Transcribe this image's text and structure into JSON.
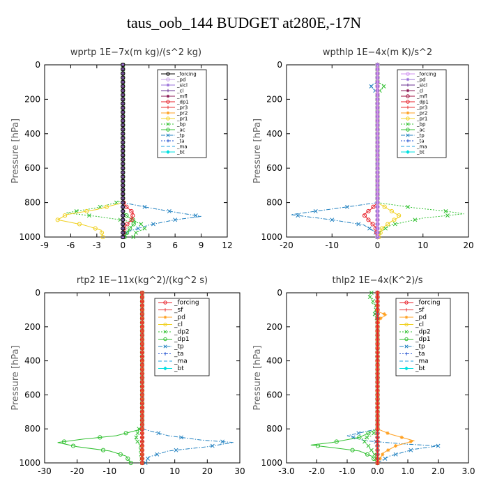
{
  "title": "taus_oob_144  BUDGET at280E,-17N",
  "chart_data": [
    {
      "type": "line",
      "title": "wprtp  1E−7x(m kg)/(s^2 kg)",
      "ylabel": "Pressure [hPa]",
      "xlim": [
        -9,
        12
      ],
      "ylim": [
        1000,
        0
      ],
      "xticks": [
        "-9",
        "-6",
        "-3",
        "0",
        "3",
        "6",
        "9",
        "12"
      ],
      "xtick_values": [
        -9,
        -6,
        -3,
        0,
        3,
        6,
        9,
        12
      ],
      "yticks": [
        "0",
        "200",
        "400",
        "600",
        "800",
        "1000"
      ],
      "ytick_values": [
        0,
        200,
        400,
        600,
        800,
        1000
      ],
      "legend_position": "top-right",
      "series": [
        {
          "name": "_forcing",
          "color": "#000000",
          "marker": "o",
          "dash": "none",
          "x": [
            0,
            0
          ],
          "y": [
            0,
            1000
          ]
        },
        {
          "name": "_pd",
          "color": "#c8a0e8",
          "marker": "o",
          "dash": "none",
          "x": [
            0,
            0
          ],
          "y": [
            0,
            1000
          ]
        },
        {
          "name": "_sicl",
          "color": "#9a70d8",
          "marker": "*",
          "dash": "none",
          "x": [
            0,
            0
          ],
          "y": [
            0,
            1000
          ]
        },
        {
          "name": "_cl",
          "color": "#6a3090",
          "marker": "+",
          "dash": "none",
          "x": [
            0,
            0
          ],
          "y": [
            0,
            1000
          ]
        },
        {
          "name": "_mfl",
          "color": "#8b1a55",
          "marker": "*",
          "dash": "none",
          "x": [
            0,
            0
          ],
          "y": [
            0,
            1000
          ]
        },
        {
          "name": "_dp1",
          "color": "#e8202a",
          "marker": "o",
          "dash": "none",
          "x": [
            0,
            0,
            0.3,
            1.2,
            1.0,
            0.2,
            0
          ],
          "y": [
            0,
            790,
            820,
            860,
            900,
            940,
            1000
          ]
        },
        {
          "name": "_pr3",
          "color": "#e83030",
          "marker": "+",
          "dash": "none",
          "x": [
            0,
            0
          ],
          "y": [
            0,
            1000
          ]
        },
        {
          "name": "_pr2",
          "color": "#ffa020",
          "marker": "*",
          "dash": "none",
          "x": [
            0,
            0
          ],
          "y": [
            0,
            1000
          ]
        },
        {
          "name": "_pr1",
          "color": "#f0d020",
          "marker": "o",
          "dash": "none",
          "x": [
            0,
            0,
            -3,
            -6.5,
            -7.5,
            -4.5,
            -2.5,
            -2.3
          ],
          "y": [
            0,
            800,
            840,
            870,
            900,
            930,
            960,
            1000
          ]
        },
        {
          "name": "_bp",
          "color": "#30c030",
          "marker": "x",
          "dash": "dot",
          "x": [
            0,
            0,
            -3,
            -6.5,
            -3,
            -0.3,
            2,
            2.5,
            1.5,
            1.2
          ],
          "y": [
            0,
            790,
            830,
            860,
            880,
            900,
            920,
            950,
            975,
            1000
          ]
        },
        {
          "name": "_ac",
          "color": "#30c030",
          "marker": "o",
          "dash": "none",
          "x": [
            0,
            0,
            0.5,
            1.5,
            0.8,
            0.4,
            0.2
          ],
          "y": [
            0,
            850,
            880,
            910,
            950,
            980,
            1000
          ]
        },
        {
          "name": "_tp",
          "color": "#2080c0",
          "marker": "x",
          "dash": "dashdot",
          "x": [
            0,
            0,
            3,
            6.5,
            9,
            6,
            3,
            0.5,
            0
          ],
          "y": [
            0,
            800,
            830,
            860,
            880,
            900,
            930,
            970,
            1000
          ]
        },
        {
          "name": "_ta",
          "color": "#2050d0",
          "marker": "+",
          "dash": "dot",
          "x": [
            0,
            0
          ],
          "y": [
            0,
            1000
          ]
        },
        {
          "name": "_ma",
          "color": "#20a0e0",
          "marker": "none",
          "dash": "dash",
          "x": [
            0,
            0
          ],
          "y": [
            0,
            1000
          ]
        },
        {
          "name": "_bt",
          "color": "#00e0e0",
          "marker": "D",
          "dash": "none",
          "x": [
            0,
            0
          ],
          "y": [
            0,
            1000
          ]
        }
      ]
    },
    {
      "type": "line",
      "title": "wpthlp  1E−4x(m K)/s^2",
      "ylabel": "Pressure [hPa]",
      "xlim": [
        -20,
        20
      ],
      "ylim": [
        1000,
        0
      ],
      "xticks": [
        "-20",
        "-10",
        "0",
        "10",
        "20"
      ],
      "xtick_values": [
        -20,
        -10,
        0,
        10,
        20
      ],
      "yticks": [
        "0",
        "200",
        "400",
        "600",
        "800",
        "1000"
      ],
      "ytick_values": [
        0,
        200,
        400,
        600,
        800,
        1000
      ],
      "legend_position": "top-right",
      "series": [
        {
          "name": "_forcing",
          "color": "#d090f0",
          "marker": "o",
          "dash": "none",
          "x": [
            0,
            0
          ],
          "y": [
            0,
            1000
          ]
        },
        {
          "name": "_pd",
          "color": "#9a70d8",
          "marker": "*",
          "dash": "none",
          "x": [
            0,
            0
          ],
          "y": [
            0,
            1000
          ]
        },
        {
          "name": "_sicl",
          "color": "#6a3090",
          "marker": "+",
          "dash": "none",
          "x": [
            0,
            0
          ],
          "y": [
            0,
            1000
          ]
        },
        {
          "name": "_cl",
          "color": "#8b1a55",
          "marker": "*",
          "dash": "none",
          "x": [
            0,
            0
          ],
          "y": [
            0,
            1000
          ]
        },
        {
          "name": "_mfl",
          "color": "#a01040",
          "marker": "o",
          "dash": "none",
          "x": [
            0,
            0
          ],
          "y": [
            0,
            1000
          ]
        },
        {
          "name": "_dp1",
          "color": "#e8202a",
          "marker": "o",
          "dash": "none",
          "x": [
            0,
            0,
            -1.5,
            -3,
            -2,
            -0.5,
            0
          ],
          "y": [
            0,
            800,
            840,
            870,
            900,
            940,
            1000
          ]
        },
        {
          "name": "_pr3",
          "color": "#e83030",
          "marker": "+",
          "dash": "none",
          "x": [
            0,
            0
          ],
          "y": [
            0,
            1000
          ]
        },
        {
          "name": "_pr2",
          "color": "#ffa020",
          "marker": "*",
          "dash": "none",
          "x": [
            0,
            0
          ],
          "y": [
            0,
            1000
          ]
        },
        {
          "name": "_pr1",
          "color": "#f0d020",
          "marker": "o",
          "dash": "none",
          "x": [
            0,
            0,
            2.5,
            5,
            3,
            1,
            0.3
          ],
          "y": [
            0,
            800,
            840,
            880,
            910,
            950,
            1000
          ]
        },
        {
          "name": "_bp",
          "color": "#30c030",
          "marker": "x",
          "dash": "dot",
          "x": [
            0,
            0,
            1.5,
            1,
            0,
            0,
            8,
            15,
            19,
            10,
            3,
            0.5,
            0
          ],
          "y": [
            0,
            100,
            120,
            140,
            160,
            800,
            830,
            850,
            865,
            890,
            930,
            970,
            1000
          ]
        },
        {
          "name": "_ac",
          "color": "#30c030",
          "marker": "o",
          "dash": "none",
          "x": [
            0,
            0
          ],
          "y": [
            0,
            1000
          ]
        },
        {
          "name": "_tp",
          "color": "#2080c0",
          "marker": "x",
          "dash": "dashdot",
          "x": [
            0,
            0,
            -1.5,
            -1,
            0,
            0,
            -8,
            -15,
            -19,
            -10,
            -3,
            -0.5,
            0
          ],
          "y": [
            0,
            100,
            120,
            140,
            160,
            800,
            830,
            855,
            870,
            900,
            930,
            970,
            1000
          ]
        },
        {
          "name": "_ta",
          "color": "#2050d0",
          "marker": "+",
          "dash": "dot",
          "x": [
            0,
            0
          ],
          "y": [
            0,
            1000
          ]
        },
        {
          "name": "_ma",
          "color": "#20a0e0",
          "marker": "none",
          "dash": "dash",
          "x": [
            0,
            0
          ],
          "y": [
            0,
            1000
          ]
        },
        {
          "name": "_bt",
          "color": "#00e0e0",
          "marker": "D",
          "dash": "none",
          "x": [
            0,
            0
          ],
          "y": [
            0,
            1000
          ]
        }
      ]
    },
    {
      "type": "line",
      "title": "rtp2  1E−11x(kg^2)/(kg^2 s)",
      "ylabel": "Pressure [hPa]",
      "xlim": [
        -30,
        30
      ],
      "ylim": [
        1000,
        0
      ],
      "xticks": [
        "-30",
        "-20",
        "-10",
        "0",
        "10",
        "20",
        "30"
      ],
      "xtick_values": [
        -30,
        -20,
        -10,
        0,
        10,
        20,
        30
      ],
      "yticks": [
        "0",
        "200",
        "400",
        "600",
        "800",
        "1000"
      ],
      "ytick_values": [
        0,
        200,
        400,
        600,
        800,
        1000
      ],
      "legend_position": "top-right",
      "series": [
        {
          "name": "_forcing",
          "color": "#e8202a",
          "marker": "o",
          "dash": "none",
          "x": [
            0,
            0
          ],
          "y": [
            0,
            1000
          ]
        },
        {
          "name": "_sf",
          "color": "#e83030",
          "marker": "+",
          "dash": "none",
          "x": [
            0,
            0
          ],
          "y": [
            0,
            1000
          ]
        },
        {
          "name": "_pd",
          "color": "#ffa020",
          "marker": "*",
          "dash": "none",
          "x": [
            0,
            0
          ],
          "y": [
            0,
            1000
          ]
        },
        {
          "name": "_cl",
          "color": "#f0d020",
          "marker": "o",
          "dash": "none",
          "x": [
            0,
            0
          ],
          "y": [
            0,
            1000
          ]
        },
        {
          "name": "_dp2",
          "color": "#30c030",
          "marker": "x",
          "dash": "dot",
          "x": [
            0,
            0,
            -1,
            -2,
            -0.5,
            -0.3,
            0
          ],
          "y": [
            0,
            790,
            800,
            860,
            900,
            960,
            1000
          ]
        },
        {
          "name": "_dp1",
          "color": "#30c030",
          "marker": "o",
          "dash": "none",
          "x": [
            0,
            0,
            -8,
            -18,
            -26,
            -20,
            -10,
            -5,
            -3.5
          ],
          "y": [
            0,
            800,
            840,
            860,
            880,
            905,
            930,
            960,
            1000
          ]
        },
        {
          "name": "_tp",
          "color": "#2080c0",
          "marker": "x",
          "dash": "dashdot",
          "x": [
            0,
            0,
            8,
            18,
            28,
            20,
            8,
            2,
            1
          ],
          "y": [
            0,
            800,
            840,
            865,
            880,
            905,
            930,
            965,
            1000
          ]
        },
        {
          "name": "_ta",
          "color": "#2050d0",
          "marker": "+",
          "dash": "dot",
          "x": [
            0,
            0
          ],
          "y": [
            0,
            1000
          ]
        },
        {
          "name": "_ma",
          "color": "#20a0e0",
          "marker": "none",
          "dash": "dash",
          "x": [
            0,
            0
          ],
          "y": [
            0,
            1000
          ]
        },
        {
          "name": "_bt",
          "color": "#00e0e0",
          "marker": "D",
          "dash": "none",
          "x": [
            0,
            0
          ],
          "y": [
            0,
            1000
          ]
        }
      ]
    },
    {
      "type": "line",
      "title": "thlp2  1E−4x(K^2)/s",
      "ylabel": "Pressure [hPa]",
      "xlim": [
        -3,
        3
      ],
      "ylim": [
        1000,
        0
      ],
      "xticks": [
        "-3.0",
        "-2.0",
        "-1.0",
        "0.0",
        "1.0",
        "2.0",
        "3.0"
      ],
      "xtick_values": [
        -3,
        -2,
        -1,
        0,
        1,
        2,
        3
      ],
      "yticks": [
        "0",
        "200",
        "400",
        "600",
        "800",
        "1000"
      ],
      "ytick_values": [
        0,
        200,
        400,
        600,
        800,
        1000
      ],
      "legend_position": "top-right",
      "series": [
        {
          "name": "_forcing",
          "color": "#e8202a",
          "marker": "o",
          "dash": "none",
          "x": [
            0,
            0
          ],
          "y": [
            0,
            1000
          ]
        },
        {
          "name": "_sf",
          "color": "#e83030",
          "marker": "+",
          "dash": "none",
          "x": [
            0,
            0
          ],
          "y": [
            0,
            1000
          ]
        },
        {
          "name": "_pd",
          "color": "#ffa020",
          "marker": "*",
          "dash": "none",
          "x": [
            0,
            0,
            0.3,
            0.1,
            0,
            0,
            0.4,
            0.8,
            1.2,
            0.6,
            0.2,
            0
          ],
          "y": [
            0,
            110,
            130,
            150,
            180,
            800,
            830,
            850,
            870,
            900,
            940,
            1000
          ]
        },
        {
          "name": "_cl",
          "color": "#f0d020",
          "marker": "o",
          "dash": "none",
          "x": [
            0,
            0
          ],
          "y": [
            0,
            1000
          ]
        },
        {
          "name": "_dp2",
          "color": "#30c030",
          "marker": "x",
          "dash": "dot",
          "x": [
            -0.2,
            -0.3,
            -0.1,
            -0.2,
            0,
            -0.1,
            0,
            0,
            -0.2,
            -0.5,
            -0.3,
            -0.1,
            0
          ],
          "y": [
            0,
            20,
            40,
            60,
            80,
            120,
            160,
            800,
            840,
            860,
            900,
            950,
            1000
          ]
        },
        {
          "name": "_dp1",
          "color": "#30c030",
          "marker": "o",
          "dash": "none",
          "x": [
            0,
            0,
            -0.6,
            -1.5,
            -2.2,
            -1.5,
            -0.6,
            -0.2,
            0
          ],
          "y": [
            0,
            800,
            850,
            880,
            895,
            910,
            930,
            960,
            1000
          ]
        },
        {
          "name": "_tp",
          "color": "#2080c0",
          "marker": "x",
          "dash": "dashdot",
          "x": [
            0,
            0,
            -0.1,
            0,
            0,
            -0.5,
            -1.0,
            -0.4,
            1.0,
            2.0,
            1.2,
            0.4,
            0
          ],
          "y": [
            0,
            100,
            120,
            140,
            800,
            820,
            840,
            870,
            890,
            900,
            920,
            960,
            1000
          ]
        },
        {
          "name": "_ta",
          "color": "#2050d0",
          "marker": "+",
          "dash": "dot",
          "x": [
            0,
            0
          ],
          "y": [
            0,
            1000
          ]
        },
        {
          "name": "_ma",
          "color": "#20a0e0",
          "marker": "none",
          "dash": "dash",
          "x": [
            0,
            0
          ],
          "y": [
            0,
            1000
          ]
        },
        {
          "name": "_bt",
          "color": "#00e0e0",
          "marker": "D",
          "dash": "none",
          "x": [
            0,
            0
          ],
          "y": [
            0,
            1000
          ]
        }
      ]
    }
  ]
}
